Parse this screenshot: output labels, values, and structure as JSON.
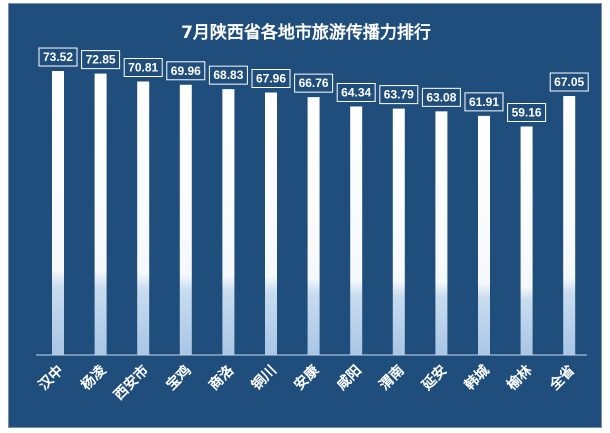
{
  "chart_data": {
    "type": "bar",
    "title": "7月陕西省各地市旅游传播力排行",
    "categories": [
      "汉中",
      "杨凌",
      "西安市",
      "宝鸡",
      "商洛",
      "铜川",
      "安康",
      "咸阳",
      "渭南",
      "延安",
      "韩城",
      "榆林",
      "全省"
    ],
    "values": [
      73.52,
      72.85,
      70.81,
      69.96,
      68.83,
      67.96,
      66.76,
      64.34,
      63.79,
      63.08,
      61.91,
      59.16,
      67.05
    ],
    "value_labels": [
      "73.52",
      "72.85",
      "70.81",
      "69.96",
      "68.83",
      "67.96",
      "66.76",
      "64.34",
      "63.79",
      "63.08",
      "61.91",
      "59.16",
      "67.05"
    ],
    "xlabel": "",
    "ylabel": "",
    "ylim": [
      0,
      80
    ],
    "grid": false,
    "legend": "none",
    "colors": {
      "background": "#1f4e7c",
      "bar_top": "#ffffff",
      "bar_bottom": "#a9c6e6",
      "label_border": "#ffffff",
      "text": "#ffffff",
      "baseline": "#c9d6e6"
    }
  }
}
